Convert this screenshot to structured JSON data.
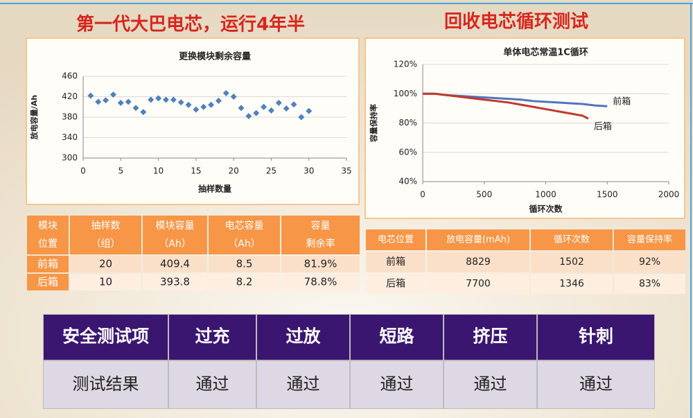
{
  "titles": {
    "left": "第一代大巴电芯，运行4年半",
    "right": "回收电芯循环测试"
  },
  "chart_data": [
    {
      "type": "scatter",
      "title": "更换模块剩余容量",
      "xlabel": "抽样数量",
      "ylabel": "放电容量/Ah",
      "color": "#4f81bd",
      "x": [
        1,
        2,
        3,
        4,
        5,
        6,
        7,
        8,
        9,
        10,
        11,
        12,
        13,
        14,
        15,
        16,
        17,
        18,
        19,
        20,
        21,
        22,
        23,
        24,
        25,
        26,
        27,
        28,
        29,
        30
      ],
      "values": [
        422,
        410,
        413,
        424,
        408,
        410,
        398,
        390,
        414,
        417,
        414,
        414,
        409,
        404,
        395,
        400,
        404,
        412,
        427,
        420,
        398,
        382,
        388,
        400,
        393,
        408,
        397,
        405,
        380,
        392
      ],
      "xlim": [
        0,
        35
      ],
      "xticks": [
        0,
        5,
        10,
        15,
        20,
        25,
        30,
        35
      ],
      "ylim": [
        300,
        460
      ],
      "yticks": [
        300,
        340,
        380,
        420,
        460
      ],
      "grid": true
    },
    {
      "type": "line",
      "title": "单体电芯常温1C循环",
      "xlabel": "循环次数",
      "ylabel": "容量保持率",
      "xlim": [
        0,
        2000
      ],
      "xticks": [
        0,
        500,
        1000,
        1500,
        2000
      ],
      "ylim": [
        40,
        120
      ],
      "yticks": [
        {
          "value": 40,
          "label": "40%"
        },
        {
          "value": 60,
          "label": "60%"
        },
        {
          "value": 80,
          "label": "80%"
        },
        {
          "value": 100,
          "label": "100%"
        },
        {
          "value": 120,
          "label": "120%"
        }
      ],
      "grid": true,
      "series": [
        {
          "name": "前箱",
          "color": "#4f74c0",
          "x": [
            0,
            100,
            200,
            300,
            400,
            500,
            600,
            700,
            800,
            900,
            1000,
            1100,
            1200,
            1300,
            1400,
            1500
          ],
          "values": [
            100,
            100,
            99,
            98.5,
            98,
            97.5,
            97,
            96.5,
            96,
            95,
            94.5,
            94,
            93.5,
            93,
            92,
            91.5
          ]
        },
        {
          "name": "后箱",
          "color": "#c0392b",
          "x": [
            0,
            100,
            200,
            300,
            400,
            500,
            600,
            700,
            800,
            900,
            1000,
            1100,
            1200,
            1300,
            1346
          ],
          "values": [
            100,
            100,
            99,
            98,
            97,
            96,
            95,
            94,
            92.5,
            91,
            89.5,
            88,
            86.5,
            85,
            83
          ]
        }
      ]
    }
  ],
  "module_table": {
    "header": [
      [
        "模块",
        "位置"
      ],
      [
        "抽样数",
        "（组）"
      ],
      [
        "模块容量",
        "（Ah）"
      ],
      [
        "电芯容量",
        "（Ah）"
      ],
      [
        "容量",
        "剩余率"
      ]
    ],
    "rows": [
      [
        "前箱",
        "20",
        "409.4",
        "8.5",
        "81.9%"
      ],
      [
        "后箱",
        "10",
        "393.8",
        "8.2",
        "78.8%"
      ]
    ]
  },
  "cell_table": {
    "header": [
      "电芯位置",
      "放电容量(mAh)",
      "循环次数",
      "容量保持率"
    ],
    "rows": [
      [
        "前箱",
        "8829",
        "1502",
        "92%"
      ],
      [
        "后箱",
        "7700",
        "1346",
        "83%"
      ]
    ]
  },
  "safety_table": {
    "header": [
      "安全测试项",
      "过充",
      "过放",
      "短路",
      "挤压",
      "针刺"
    ],
    "rows": [
      [
        "测试结果",
        "通过",
        "通过",
        "通过",
        "通过",
        "通过"
      ]
    ]
  }
}
